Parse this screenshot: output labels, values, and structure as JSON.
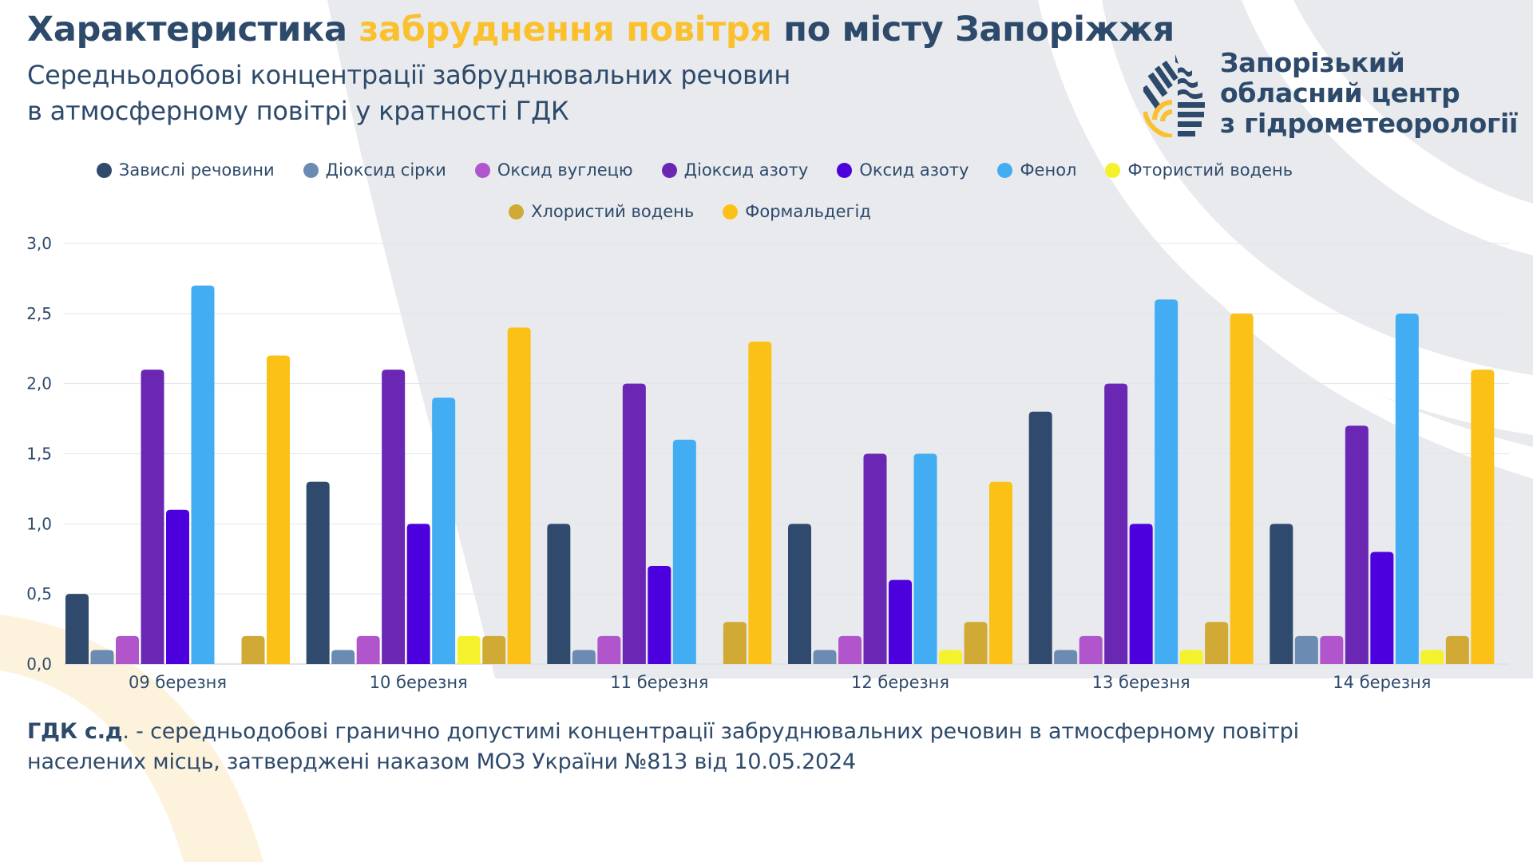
{
  "header": {
    "title_part1": "Характеристика ",
    "title_accent": "забруднення повітря",
    "title_part2": " по місту Запоріжжя",
    "subtitle_line1": "Середньодобові концентрації забруднювальних речовин",
    "subtitle_line2": "в атмосферному повітрі у кратності ГДК"
  },
  "organization": {
    "line1": "Запорізький",
    "line2": "обласний центр",
    "line3": "з гідрометеорології",
    "logo_icon": "water-drop-logo-icon"
  },
  "colors": {
    "text": "#2e4a6b",
    "accent": "#fbc02d",
    "grid": "#e3e6ec",
    "background_shape": "#e8eaee"
  },
  "chart_data": {
    "type": "bar",
    "title": "Середньодобові концентрації забруднювальних речовин в атмосферному повітрі у кратності ГДК",
    "xlabel": "",
    "ylabel": "",
    "ylim": [
      0,
      3.0
    ],
    "yticks": [
      "0,0",
      "0,5",
      "1,0",
      "1,5",
      "2,0",
      "2,5",
      "3,0"
    ],
    "ytick_values": [
      0,
      0.5,
      1.0,
      1.5,
      2.0,
      2.5,
      3.0
    ],
    "grid": true,
    "legend_position": "top-center",
    "categories": [
      "09 березня",
      "10 березня",
      "11 березня",
      "12 березня",
      "13 березня",
      "14 березня"
    ],
    "series": [
      {
        "name": "Завислі речовини",
        "color": "#2f4a6d",
        "values": [
          0.5,
          1.3,
          1.0,
          1.0,
          1.8,
          1.0
        ]
      },
      {
        "name": "Діоксид сірки",
        "color": "#6b8bb3",
        "values": [
          0.1,
          0.1,
          0.1,
          0.1,
          0.1,
          0.2
        ]
      },
      {
        "name": "Оксид вуглецю",
        "color": "#b055cc",
        "values": [
          0.2,
          0.2,
          0.2,
          0.2,
          0.2,
          0.2
        ]
      },
      {
        "name": "Діоксид азоту",
        "color": "#6a27b3",
        "values": [
          2.1,
          2.1,
          2.0,
          1.5,
          2.0,
          1.7
        ]
      },
      {
        "name": "Оксид азоту",
        "color": "#4c00dd",
        "values": [
          1.1,
          1.0,
          0.7,
          0.6,
          1.0,
          0.8
        ]
      },
      {
        "name": "Фенол",
        "color": "#42adf2",
        "values": [
          2.7,
          1.9,
          1.6,
          1.5,
          2.6,
          2.5
        ]
      },
      {
        "name": "Фтористий водень",
        "color": "#f4f22c",
        "values": [
          0,
          0.2,
          0,
          0.1,
          0.1,
          0.1
        ]
      },
      {
        "name": "Хлористий водень",
        "color": "#d1a935",
        "values": [
          0.2,
          0.2,
          0.3,
          0.3,
          0.3,
          0.2
        ]
      },
      {
        "name": "Формальдегід",
        "color": "#fbc117",
        "values": [
          2.2,
          2.4,
          2.3,
          1.3,
          2.5,
          2.1
        ]
      }
    ]
  },
  "footnote": {
    "term": "ГДК с.д",
    "dot": ".",
    "line1_rest": " - середньодобові гранично допустимі концентрації забруднювальних речовин в атмосферному повітрі",
    "line2": "населених місць, затверджені наказом МОЗ України №813 від 10.05.2024"
  }
}
